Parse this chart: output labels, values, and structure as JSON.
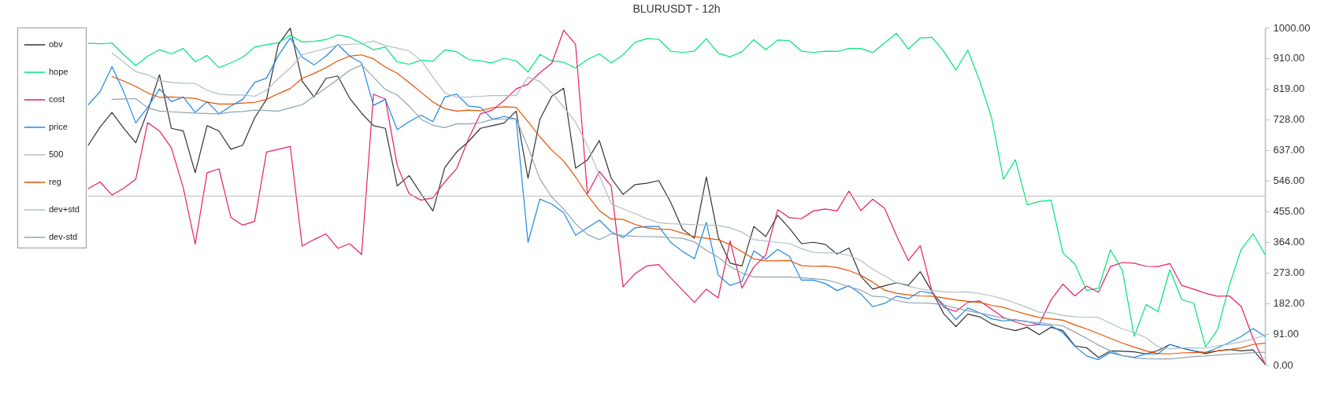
{
  "chart_data": {
    "type": "line",
    "title": "BLURUSDT - 12h",
    "categories": [
      null,
      null,
      null,
      null,
      null,
      null,
      null,
      null,
      null,
      null,
      null,
      null,
      null,
      null,
      null,
      null,
      null,
      null,
      null,
      null,
      null,
      null,
      null,
      null,
      null,
      null,
      null,
      null,
      null,
      null,
      null,
      null,
      null,
      null,
      null,
      null,
      null,
      null,
      null,
      null,
      null,
      null,
      null,
      null,
      null,
      null,
      null,
      null,
      null,
      null,
      null,
      null,
      null,
      null,
      null,
      null,
      null,
      null,
      null,
      null,
      null,
      null,
      null,
      null,
      null,
      null,
      null,
      null,
      null,
      null,
      null,
      null,
      null,
      null,
      null,
      null,
      null,
      null,
      null,
      null,
      null,
      null,
      null,
      null,
      null,
      null,
      null,
      null,
      null,
      null,
      null,
      null,
      null,
      null,
      null,
      null,
      null,
      null,
      null,
      null
    ],
    "series": [
      {
        "name": "obv",
        "color": "#333333",
        "values": [
          651,
          705,
          748,
          701,
          658,
          752,
          860,
          701,
          693,
          569,
          709,
          693,
          639,
          651,
          732,
          787,
          950,
          998,
          841,
          794,
          849,
          856,
          790,
          746,
          709,
          701,
          530,
          561,
          507,
          456,
          585,
          631,
          662,
          701,
          709,
          717,
          752,
          553,
          728,
          796,
          820,
          583,
          607,
          665,
          553,
          505,
          534,
          538,
          546,
          482,
          402,
          375,
          557,
          379,
          301,
          293,
          410,
          380,
          443,
          404,
          359,
          363,
          357,
          328,
          346,
          262,
          224,
          234,
          243,
          235,
          276,
          216,
          150,
          113,
          150,
          142,
          121,
          109,
          101,
          111,
          89,
          111,
          101,
          56,
          50,
          21,
          41,
          40,
          38,
          32,
          42,
          60,
          49,
          41,
          33,
          41,
          45,
          41,
          44,
          2
        ]
      },
      {
        "name": "hope",
        "color": "#00e676",
        "values": [
          953,
          952,
          954,
          919,
          887,
          915,
          934,
          922,
          938,
          898,
          917,
          881,
          895,
          912,
          942,
          949,
          955,
          977,
          957,
          959,
          964,
          978,
          971,
          953,
          934,
          942,
          898,
          891,
          903,
          900,
          934,
          928,
          905,
          901,
          895,
          909,
          901,
          868,
          920,
          901,
          897,
          880,
          905,
          922,
          895,
          919,
          956,
          967,
          965,
          930,
          926,
          930,
          967,
          924,
          913,
          928,
          964,
          934,
          963,
          961,
          930,
          926,
          930,
          929,
          938,
          938,
          926,
          954,
          983,
          936,
          969,
          971,
          928,
          874,
          933,
          842,
          732,
          550,
          608,
          474,
          484,
          488,
          332,
          299,
          220,
          227,
          341,
          280,
          84,
          178,
          158,
          282,
          193,
          183,
          53,
          103,
          235,
          342,
          388,
          327
        ]
      },
      {
        "name": "cost",
        "color": "#e91e63",
        "values": [
          522,
          542,
          503,
          524,
          550,
          718,
          693,
          643,
          524,
          358,
          569,
          581,
          437,
          414,
          425,
          631,
          639,
          647,
          352,
          371,
          388,
          345,
          359,
          327,
          802,
          788,
          590,
          507,
          488,
          495,
          542,
          582,
          670,
          744,
          755,
          784,
          818,
          832,
          866,
          894,
          992,
          950,
          507,
          573,
          530,
          231,
          270,
          293,
          297,
          258,
          221,
          185,
          224,
          198,
          367,
          227,
          290,
          325,
          460,
          436,
          433,
          456,
          462,
          456,
          515,
          457,
          491,
          464,
          383,
          309,
          353,
          216,
          170,
          158,
          185,
          189,
          165,
          140,
          127,
          116,
          119,
          192,
          239,
          204,
          233,
          215,
          291,
          303,
          301,
          292,
          291,
          300,
          235,
          224,
          212,
          203,
          204,
          173,
          78,
          2
        ]
      },
      {
        "name": "price",
        "color": "#1e88e5",
        "values": [
          771,
          810,
          884,
          808,
          717,
          763,
          818,
          780,
          794,
          748,
          780,
          744,
          767,
          787,
          837,
          850,
          917,
          969,
          912,
          889,
          915,
          950,
          915,
          895,
          769,
          787,
          697,
          721,
          740,
          721,
          794,
          802,
          767,
          763,
          728,
          736,
          728,
          363,
          491,
          476,
          451,
          384,
          406,
          429,
          394,
          377,
          406,
          410,
          410,
          363,
          336,
          314,
          422,
          266,
          235,
          247,
          338,
          313,
          342,
          321,
          251,
          251,
          241,
          220,
          234,
          210,
          172,
          182,
          203,
          196,
          218,
          212,
          177,
          134,
          168,
          154,
          136,
          130,
          133,
          128,
          119,
          116,
          95,
          55,
          26,
          15,
          36,
          27,
          22,
          33,
          32,
          60,
          50,
          41,
          36,
          50,
          66,
          84,
          107,
          84
        ]
      },
      {
        "name": "500",
        "color": "#bdbdbd",
        "values": [
          500,
          500,
          500,
          500,
          500,
          500,
          500,
          500,
          500,
          500,
          500,
          500,
          500,
          500,
          500,
          500,
          500,
          500,
          500,
          500,
          500,
          500,
          500,
          500,
          500,
          500,
          500,
          500,
          500,
          500,
          500,
          500,
          500,
          500,
          500,
          500,
          500,
          500,
          500,
          500,
          500,
          500,
          500,
          500,
          500,
          500,
          500,
          500,
          500,
          500,
          500,
          500,
          500,
          500,
          500,
          500,
          500,
          500,
          500,
          500,
          500,
          500,
          500,
          500,
          500,
          500,
          500,
          500,
          500,
          500,
          500,
          500,
          500,
          500,
          500,
          500,
          500,
          500,
          500,
          500,
          500,
          500,
          500,
          500,
          500,
          500,
          500,
          500,
          500,
          500,
          500,
          500,
          500,
          500,
          500,
          500,
          500,
          500,
          500,
          500
        ]
      },
      {
        "name": "reg",
        "color": "#e65100",
        "values": [
          null,
          null,
          855,
          841,
          825,
          806,
          793,
          794,
          792,
          790,
          779,
          773,
          773,
          776,
          778,
          787,
          804,
          819,
          849,
          864,
          881,
          901,
          915,
          919,
          907,
          883,
          864,
          837,
          808,
          779,
          759,
          752,
          755,
          753,
          762,
          765,
          763,
          721,
          676,
          636,
          604,
          557,
          503,
          457,
          432,
          431,
          416,
          406,
          402,
          401,
          390,
          380,
          375,
          371,
          356,
          335,
          314,
          308,
          308,
          309,
          294,
          292,
          293,
          288,
          279,
          265,
          245,
          221,
          212,
          207,
          204,
          203,
          198,
          192,
          188,
          185,
          176,
          170,
          159,
          149,
          140,
          136,
          132,
          118,
          106,
          92,
          78,
          64,
          52,
          41,
          33,
          32,
          35,
          36,
          37,
          41,
          45,
          50,
          60,
          64
        ]
      },
      {
        "name": "dev+std",
        "color": "#b0bec5",
        "values": [
          null,
          null,
          925,
          897,
          869,
          860,
          843,
          837,
          835,
          834,
          814,
          802,
          800,
          800,
          796,
          814,
          849,
          880,
          919,
          929,
          938,
          948,
          950,
          951,
          960,
          946,
          939,
          930,
          903,
          853,
          806,
          793,
          794,
          796,
          798,
          798,
          798,
          853,
          840,
          806,
          764,
          719,
          650,
          561,
          477,
          462,
          448,
          433,
          421,
          418,
          417,
          415,
          414,
          413,
          406,
          393,
          371,
          367,
          363,
          359,
          344,
          333,
          332,
          332,
          324,
          309,
          283,
          264,
          243,
          233,
          225,
          220,
          216,
          215,
          216,
          211,
          204,
          195,
          183,
          170,
          156,
          154,
          146,
          142,
          141,
          140,
          123,
          106,
          95,
          80,
          53,
          47,
          50,
          50,
          49,
          56,
          61,
          68,
          76,
          88
        ]
      },
      {
        "name": "dev-std",
        "color": "#90a4ae",
        "values": [
          null,
          null,
          787,
          788,
          789,
          762,
          752,
          750,
          748,
          746,
          745,
          744,
          749,
          751,
          755,
          754,
          752,
          762,
          771,
          796,
          821,
          846,
          873,
          889,
          853,
          816,
          800,
          767,
          728,
          710,
          703,
          714,
          714,
          718,
          727,
          729,
          729,
          645,
          551,
          497,
          462,
          418,
          386,
          371,
          388,
          383,
          381,
          380,
          379,
          377,
          375,
          364,
          339,
          319,
          291,
          272,
          260,
          260,
          260,
          260,
          258,
          255,
          252,
          243,
          231,
          221,
          203,
          201,
          190,
          184,
          183,
          182,
          177,
          168,
          160,
          153,
          146,
          138,
          132,
          127,
          125,
          120,
          115,
          97,
          78,
          58,
          41,
          27,
          20,
          18,
          17,
          17,
          20,
          24,
          26,
          29,
          31,
          33,
          36,
          37
        ]
      }
    ],
    "ylim": [
      0,
      1000
    ],
    "yticks": [
      {
        "value": 0,
        "label": "0.00"
      },
      {
        "value": 91,
        "label": "91.00"
      },
      {
        "value": 182,
        "label": "182.00"
      },
      {
        "value": 273,
        "label": "273.00"
      },
      {
        "value": 364,
        "label": "364.00"
      },
      {
        "value": 455,
        "label": "455.00"
      },
      {
        "value": 546,
        "label": "546.00"
      },
      {
        "value": 637,
        "label": "637.00"
      },
      {
        "value": 728,
        "label": "728.00"
      },
      {
        "value": 819,
        "label": "819.00"
      },
      {
        "value": 910,
        "label": "910.00"
      },
      {
        "value": 1000,
        "label": "1000.00"
      }
    ],
    "grid": false,
    "legend": "top left"
  }
}
